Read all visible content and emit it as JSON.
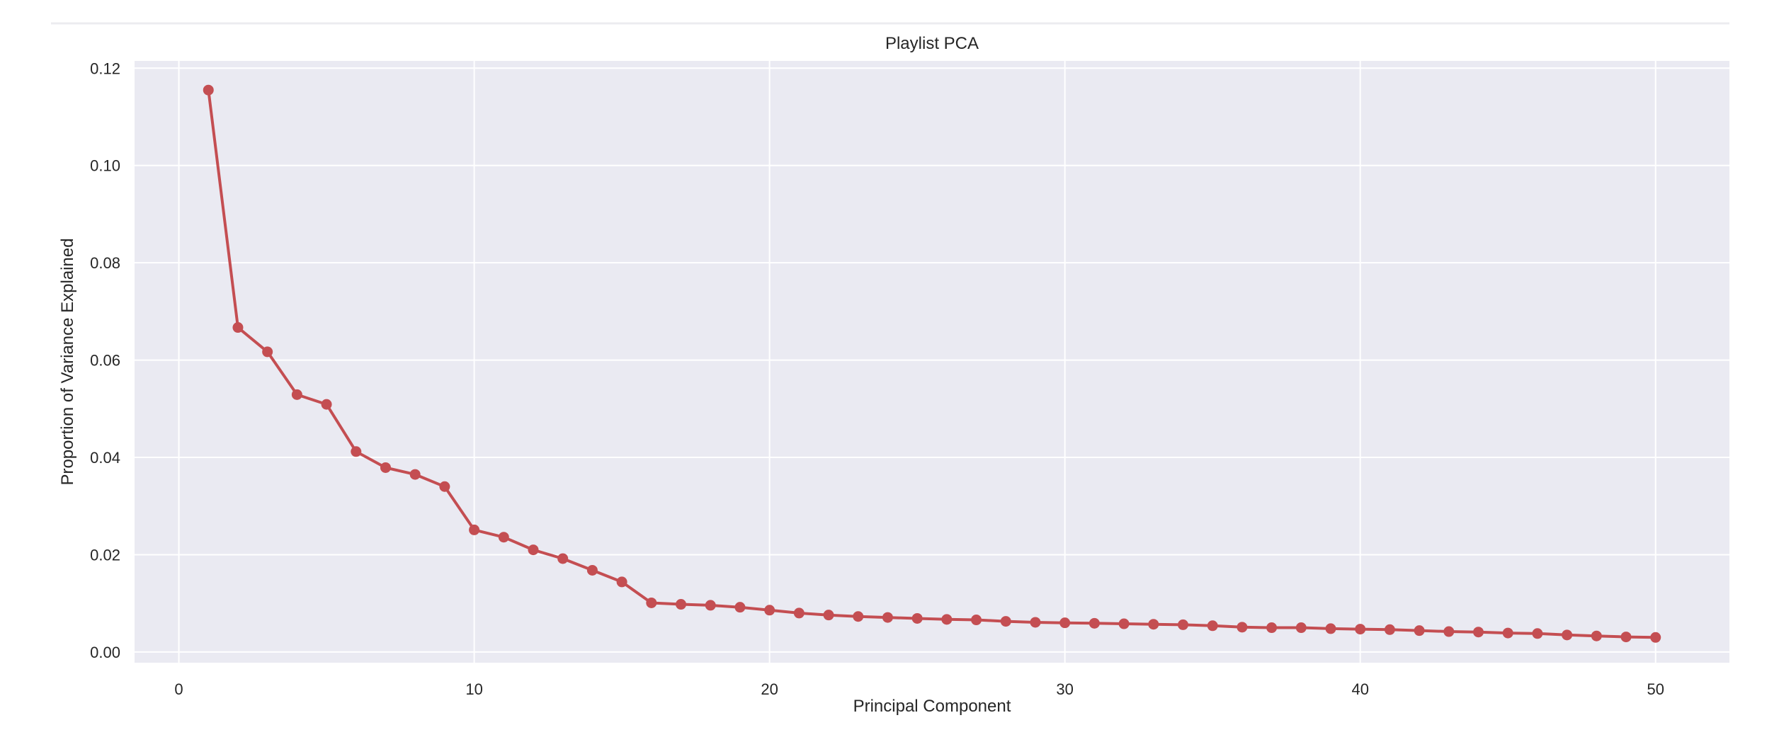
{
  "chart_data": {
    "type": "line",
    "title": "Playlist PCA",
    "xlabel": "Principal Component",
    "ylabel": "Proportion of Variance Explained",
    "xlim": [
      -1.5,
      52.5
    ],
    "ylim": [
      -0.0022,
      0.1215
    ],
    "xticks": [
      0,
      10,
      20,
      30,
      40,
      50
    ],
    "xtick_labels": [
      "0",
      "10",
      "20",
      "30",
      "40",
      "50"
    ],
    "yticks": [
      0.0,
      0.02,
      0.04,
      0.06,
      0.08,
      0.1,
      0.12
    ],
    "ytick_labels": [
      "0.00",
      "0.02",
      "0.04",
      "0.06",
      "0.08",
      "0.10",
      "0.12"
    ],
    "grid": true,
    "legend": "none",
    "colors": {
      "line": "#c44e52",
      "plot_background": "#eaeaf2",
      "grid": "#ffffff",
      "text": "#262626"
    },
    "series": [
      {
        "marker": "circle",
        "x": [
          1,
          2,
          3,
          4,
          5,
          6,
          7,
          8,
          9,
          10,
          11,
          12,
          13,
          14,
          15,
          16,
          17,
          18,
          19,
          20,
          21,
          22,
          23,
          24,
          25,
          26,
          27,
          28,
          29,
          30,
          31,
          32,
          33,
          34,
          35,
          36,
          37,
          38,
          39,
          40,
          41,
          42,
          43,
          44,
          45,
          46,
          47,
          48,
          49,
          50
        ],
        "values": [
          0.1155,
          0.0667,
          0.0617,
          0.0529,
          0.0509,
          0.0412,
          0.0379,
          0.0365,
          0.034,
          0.0251,
          0.0236,
          0.021,
          0.0192,
          0.0168,
          0.0144,
          0.0101,
          0.0098,
          0.0096,
          0.0092,
          0.0086,
          0.008,
          0.0076,
          0.0073,
          0.0071,
          0.0069,
          0.0067,
          0.0066,
          0.0063,
          0.0061,
          0.006,
          0.0059,
          0.0058,
          0.0057,
          0.0056,
          0.0054,
          0.0051,
          0.005,
          0.005,
          0.0048,
          0.0047,
          0.0046,
          0.0044,
          0.0042,
          0.0041,
          0.0039,
          0.0038,
          0.0035,
          0.0033,
          0.0031,
          0.003
        ]
      }
    ]
  }
}
